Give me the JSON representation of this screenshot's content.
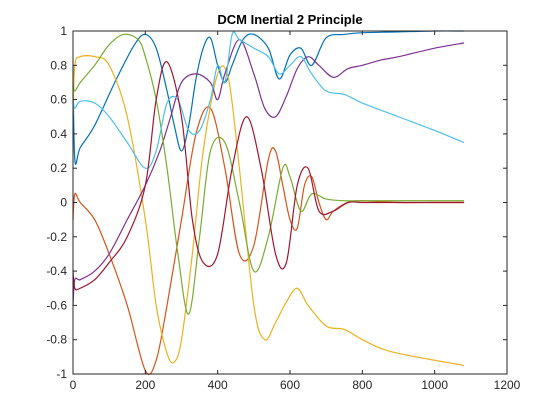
{
  "chart_data": {
    "type": "line",
    "title": "DCM Inertial 2 Principle",
    "xlabel": "",
    "ylabel": "",
    "xlim": [
      0,
      1200
    ],
    "ylim": [
      -1,
      1
    ],
    "xticks": [
      "0",
      "200",
      "400",
      "600",
      "800",
      "1000",
      "1200"
    ],
    "yticks": [
      "-1",
      "-0.8",
      "-0.6",
      "-0.4",
      "-0.2",
      "0",
      "0.2",
      "0.4",
      "0.6",
      "0.8",
      "1"
    ],
    "grid": false,
    "legend": "none",
    "series": [
      {
        "color": "#0072bd",
        "x": [
          0,
          5,
          20,
          60,
          120,
          170,
          200,
          230,
          260,
          280,
          300,
          320,
          340,
          360,
          380,
          400,
          420,
          440,
          470,
          500,
          540,
          570,
          600,
          630,
          660,
          700,
          750,
          800,
          900,
          1000,
          1080
        ],
        "y": [
          0.8,
          0.25,
          0.32,
          0.45,
          0.72,
          0.92,
          0.98,
          0.9,
          0.65,
          0.45,
          0.3,
          0.45,
          0.72,
          0.9,
          0.96,
          0.8,
          0.7,
          0.8,
          0.95,
          0.98,
          0.9,
          0.72,
          0.86,
          0.9,
          0.8,
          0.96,
          0.98,
          0.99,
          0.995,
          1.0,
          1.0
        ]
      },
      {
        "color": "#d95319",
        "x": [
          0,
          5,
          20,
          60,
          100,
          150,
          200,
          230,
          260,
          300,
          340,
          380,
          420,
          460,
          500,
          540,
          560,
          580,
          600,
          620,
          640,
          660,
          680,
          700,
          720,
          760,
          800,
          900,
          1000,
          1080
        ],
        "y": [
          -0.1,
          0.05,
          0.0,
          -0.1,
          -0.3,
          -0.6,
          -0.98,
          -0.92,
          -0.6,
          -0.1,
          0.4,
          0.55,
          0.2,
          -0.3,
          -0.25,
          0.25,
          0.3,
          0.1,
          -0.1,
          -0.15,
          0.1,
          0.15,
          0.0,
          -0.1,
          -0.05,
          0.0,
          0.01,
          0.0,
          0.0,
          0.0
        ]
      },
      {
        "color": "#edb120",
        "x": [
          0,
          5,
          20,
          60,
          100,
          150,
          200,
          230,
          260,
          280,
          300,
          330,
          360,
          400,
          430,
          460,
          500,
          530,
          560,
          590,
          620,
          650,
          700,
          750,
          800,
          850,
          900,
          1000,
          1080
        ],
        "y": [
          0.5,
          0.8,
          0.85,
          0.85,
          0.8,
          0.5,
          -0.1,
          -0.6,
          -0.88,
          -0.93,
          -0.8,
          -0.3,
          0.3,
          0.75,
          0.72,
          0.2,
          -0.6,
          -0.8,
          -0.7,
          -0.58,
          -0.5,
          -0.6,
          -0.72,
          -0.74,
          -0.8,
          -0.85,
          -0.88,
          -0.92,
          -0.95
        ]
      },
      {
        "color": "#7e2f8e",
        "x": [
          0,
          5,
          20,
          60,
          100,
          150,
          200,
          240,
          270,
          300,
          340,
          380,
          400,
          420,
          460,
          500,
          530,
          560,
          590,
          620,
          650,
          680,
          720,
          760,
          800,
          850,
          900,
          1000,
          1080
        ],
        "y": [
          -0.6,
          -0.45,
          -0.45,
          -0.4,
          -0.3,
          -0.1,
          0.1,
          0.3,
          0.5,
          0.7,
          0.75,
          0.7,
          0.6,
          0.75,
          0.95,
          0.75,
          0.55,
          0.5,
          0.62,
          0.78,
          0.85,
          0.8,
          0.73,
          0.78,
          0.8,
          0.83,
          0.85,
          0.9,
          0.93
        ]
      },
      {
        "color": "#77ac30",
        "x": [
          0,
          5,
          20,
          60,
          100,
          140,
          180,
          200,
          230,
          260,
          290,
          320,
          350,
          380,
          420,
          460,
          500,
          540,
          580,
          600,
          630,
          660,
          700,
          750,
          800,
          900,
          1000,
          1080
        ],
        "y": [
          0.7,
          0.65,
          0.7,
          0.8,
          0.92,
          0.98,
          0.95,
          0.85,
          0.6,
          0.2,
          -0.3,
          -0.65,
          -0.2,
          0.3,
          0.35,
          0.0,
          -0.4,
          -0.2,
          0.2,
          0.15,
          -0.05,
          0.05,
          0.02,
          0.01,
          0.01,
          0.01,
          0.01,
          0.01
        ]
      },
      {
        "color": "#4dbeee",
        "x": [
          0,
          5,
          20,
          60,
          100,
          150,
          200,
          230,
          260,
          290,
          320,
          350,
          380,
          400,
          420,
          440,
          460,
          500,
          540,
          570,
          600,
          630,
          660,
          700,
          750,
          800,
          900,
          1000,
          1080
        ],
        "y": [
          0.6,
          0.55,
          0.59,
          0.58,
          0.5,
          0.35,
          0.2,
          0.3,
          0.58,
          0.6,
          0.42,
          0.42,
          0.6,
          0.8,
          0.7,
          0.98,
          0.95,
          0.9,
          0.85,
          0.75,
          0.8,
          0.85,
          0.75,
          0.65,
          0.63,
          0.58,
          0.5,
          0.42,
          0.35
        ]
      },
      {
        "color": "#a2142f",
        "x": [
          0,
          5,
          20,
          60,
          100,
          150,
          200,
          230,
          260,
          300,
          330,
          360,
          400,
          440,
          480,
          520,
          560,
          590,
          620,
          650,
          680,
          720,
          760,
          800,
          900,
          1000,
          1080
        ],
        "y": [
          -0.4,
          -0.5,
          -0.5,
          -0.45,
          -0.35,
          -0.2,
          0.1,
          0.6,
          0.82,
          0.5,
          -0.1,
          -0.35,
          -0.3,
          0.2,
          0.5,
          0.2,
          -0.3,
          -0.35,
          0.1,
          0.2,
          -0.05,
          -0.05,
          0.0,
          0.0,
          0.0,
          0.0,
          0.0
        ]
      }
    ]
  }
}
